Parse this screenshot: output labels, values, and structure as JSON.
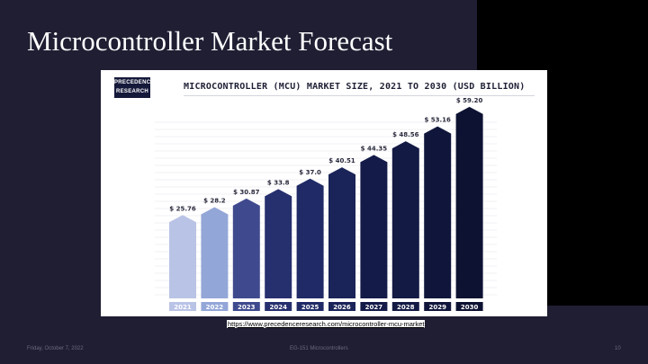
{
  "slide": {
    "title": "Microcontroller Market Forecast",
    "source_link": "https://www.precedenceresearch.com/microcontroller-mcu-market",
    "footer": {
      "date": "Friday, October 7, 2022",
      "course": "EG-151 Microcontrollers",
      "page": "10"
    }
  },
  "logo": {
    "line1": "PRECEDENCE",
    "line2": "RESEARCH"
  },
  "colors": {
    "background": "#1f1e33",
    "bars": [
      "#b9c3e6",
      "#93a6d8",
      "#3f4a8e",
      "#27306e",
      "#1f2a66",
      "#1a2458",
      "#141b49",
      "#131a44",
      "#10163b",
      "#0d1232"
    ]
  },
  "chart_data": {
    "type": "bar",
    "title": "MICROCONTROLLER (MCU) MARKET SIZE, 2021 TO 2030 (USD BILLION)",
    "categories": [
      "2021",
      "2022",
      "2023",
      "2024",
      "2025",
      "2026",
      "2027",
      "2028",
      "2029",
      "2030"
    ],
    "values": [
      25.76,
      28.2,
      30.87,
      33.8,
      37.0,
      40.51,
      44.35,
      48.56,
      53.16,
      59.2
    ],
    "value_labels": [
      "$ 25.76",
      "$ 28.2",
      "$ 30.87",
      "$ 33.8",
      "$ 37.0",
      "$ 40.51",
      "$ 44.35",
      "$ 48.56",
      "$ 53.16",
      "$ 59.20"
    ],
    "grid": true,
    "legend": "none"
  }
}
